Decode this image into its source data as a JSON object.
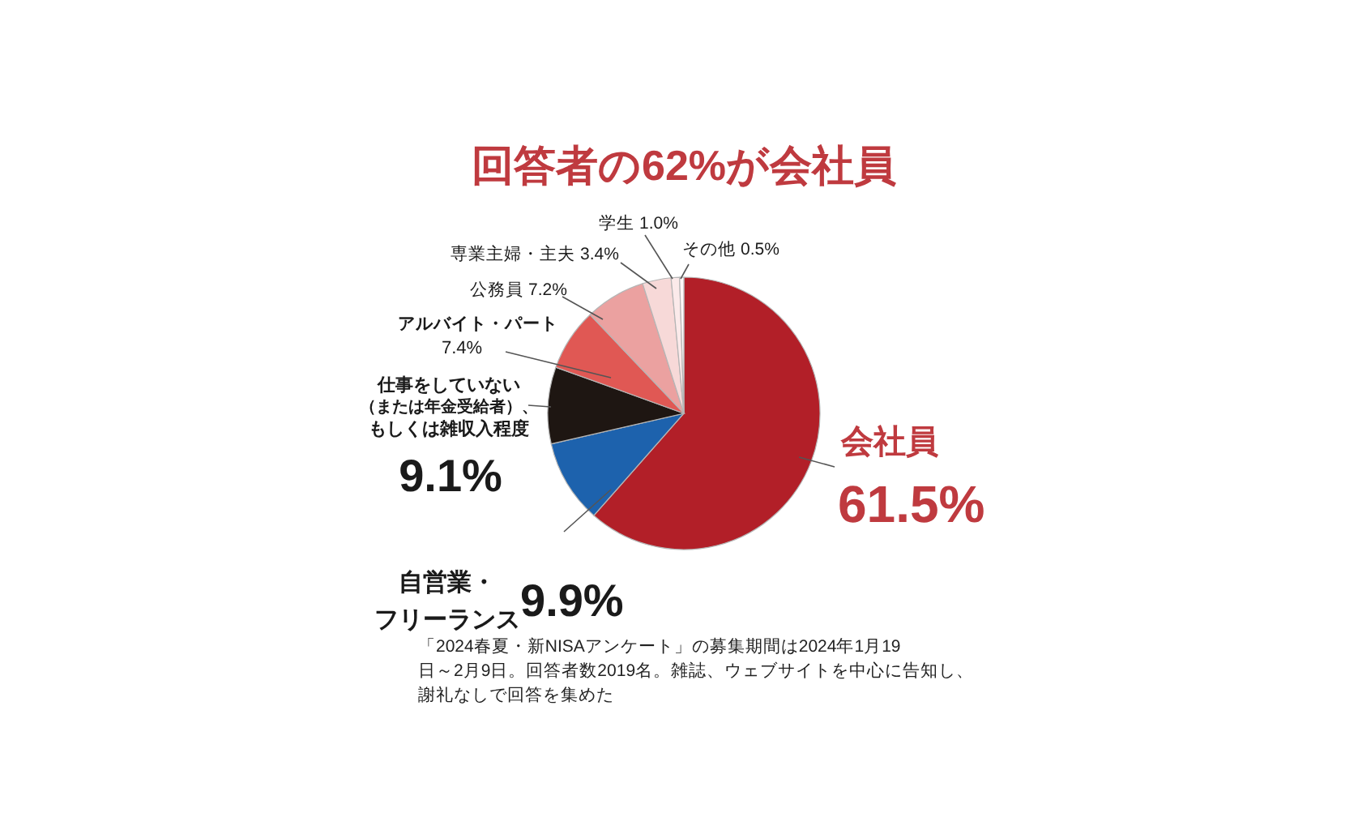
{
  "chart_data": {
    "type": "pie",
    "title": "回答者の62%が会社員",
    "categories": [
      "会社員",
      "自営業・フリーランス",
      "仕事をしていない（または年金受給者）、もしくは雑収入程度",
      "アルバイト・パート",
      "公務員",
      "専業主婦・主夫",
      "学生",
      "その他"
    ],
    "values": [
      61.5,
      9.9,
      9.1,
      7.4,
      7.2,
      3.4,
      1.0,
      0.5
    ],
    "colors": [
      "#b21f28",
      "#1d62ad",
      "#1e1612",
      "#e05854",
      "#eba1a0",
      "#f7d9d8",
      "#fbeaea",
      "#fef8f8"
    ],
    "value_labels": [
      "61.5%",
      "9.9%",
      "9.1%",
      "7.4%",
      "7.2%",
      "3.4%",
      "1.0%",
      "0.5%"
    ],
    "annotations": [
      "「2024春夏・新NISAアンケート」の募集期間は2024年1月19日～2月9日。回答者数2019名。雑誌、ウェブサイトを中心に告知し、謝礼なしで回答を集めた"
    ]
  }
}
